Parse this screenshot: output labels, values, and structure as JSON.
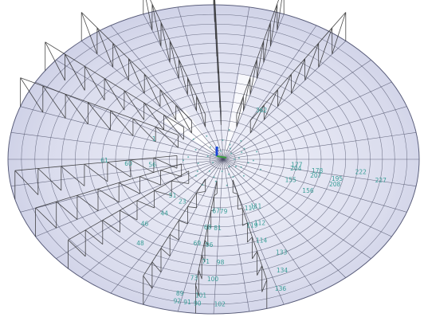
{
  "model_view": {
    "colors": {
      "background": "#ffffff",
      "surface_fill": "#d4d6ec",
      "surface_edge": "#6e7191",
      "frame": "#2a2a2a",
      "ring": "#4a4d66",
      "labels": "#3a9e98",
      "axis_x": "#1c46d8",
      "axis_y": "#3aa040"
    },
    "label_samples": [
      {
        "text": "1",
        "group": "radial"
      },
      {
        "text": "23",
        "group": "bottom-left"
      },
      {
        "text": "44",
        "group": "bottom-left"
      },
      {
        "text": "46",
        "group": "bottom-left"
      },
      {
        "text": "48",
        "group": "bottom-left"
      },
      {
        "text": "51",
        "group": "lower-left"
      },
      {
        "text": "56",
        "group": "left-rim"
      },
      {
        "text": "60",
        "group": "left-rim"
      },
      {
        "text": "61",
        "group": "left-rim"
      },
      {
        "text": "67",
        "group": "bottom"
      },
      {
        "text": "68",
        "group": "bottom"
      },
      {
        "text": "69",
        "group": "bottom"
      },
      {
        "text": "71",
        "group": "bottom"
      },
      {
        "text": "73",
        "group": "bottom"
      },
      {
        "text": "79",
        "group": "lower-center"
      },
      {
        "text": "81",
        "group": "lower-center"
      },
      {
        "text": "89",
        "group": "bottom"
      },
      {
        "text": "90",
        "group": "bottom"
      },
      {
        "text": "91",
        "group": "bottom"
      },
      {
        "text": "92",
        "group": "bottom"
      },
      {
        "text": "96",
        "group": "lower-center"
      },
      {
        "text": "98",
        "group": "lower-center"
      },
      {
        "text": "100",
        "group": "lower-center"
      },
      {
        "text": "101",
        "group": "lower-center"
      },
      {
        "text": "102",
        "group": "lower-center"
      },
      {
        "text": "111",
        "group": "bottom-right"
      },
      {
        "text": "112",
        "group": "bottom-right"
      },
      {
        "text": "114",
        "group": "bottom-right"
      },
      {
        "text": "117",
        "group": "lower-right"
      },
      {
        "text": "119",
        "group": "lower-right"
      },
      {
        "text": "133",
        "group": "bottom-right"
      },
      {
        "text": "134",
        "group": "bottom-right"
      },
      {
        "text": "136",
        "group": "bottom-right"
      },
      {
        "text": "155",
        "group": "right"
      },
      {
        "text": "156",
        "group": "right"
      },
      {
        "text": "177",
        "group": "right-rim"
      },
      {
        "text": "178",
        "group": "right-rim"
      },
      {
        "text": "195",
        "group": "right-rim"
      },
      {
        "text": "204",
        "group": "right-center"
      },
      {
        "text": "207",
        "group": "right-center"
      },
      {
        "text": "208",
        "group": "right-center"
      },
      {
        "text": "222",
        "group": "right-rim"
      },
      {
        "text": "227",
        "group": "right-rim"
      },
      {
        "text": "362",
        "group": "upper-right"
      }
    ]
  }
}
